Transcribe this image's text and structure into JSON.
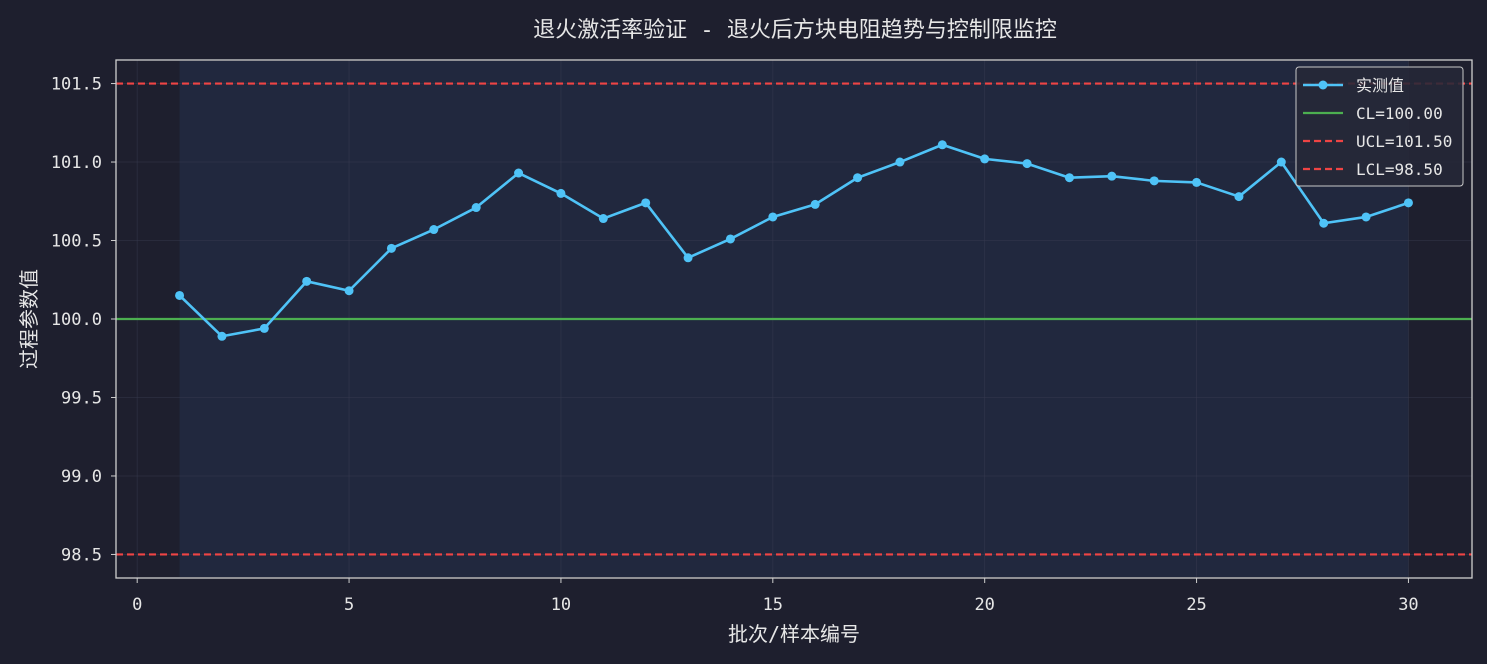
{
  "chart_data": {
    "type": "line",
    "title": "退火激活率验证 - 退火后方块电阻趋势与控制限监控",
    "xlabel": "批次/样本编号",
    "ylabel": "过程参数值",
    "xlim": [
      -0.5,
      31.5
    ],
    "ylim": [
      98.35,
      101.65
    ],
    "xticks": [
      0,
      5,
      10,
      15,
      20,
      25,
      30
    ],
    "yticks": [
      98.5,
      99.0,
      99.5,
      100.0,
      100.5,
      101.0,
      101.5
    ],
    "ytick_labels": [
      "98.5",
      "99.0",
      "99.5",
      "100.0",
      "100.5",
      "101.0",
      "101.5"
    ],
    "grid": true,
    "legend_position": "top-right",
    "x": [
      1,
      2,
      3,
      4,
      5,
      6,
      7,
      8,
      9,
      10,
      11,
      12,
      13,
      14,
      15,
      16,
      17,
      18,
      19,
      20,
      21,
      22,
      23,
      24,
      25,
      26,
      27,
      28,
      29,
      30
    ],
    "series": [
      {
        "name": "实测值",
        "color": "#4fc3f7",
        "values": [
          100.15,
          99.89,
          99.94,
          100.24,
          100.18,
          100.45,
          100.57,
          100.71,
          100.93,
          100.8,
          100.64,
          100.74,
          100.39,
          100.51,
          100.65,
          100.73,
          100.9,
          101.0,
          101.11,
          101.02,
          100.99,
          100.9,
          100.91,
          100.88,
          100.87,
          100.78,
          101.0,
          100.61,
          100.65,
          100.74
        ]
      }
    ],
    "control_lines": [
      {
        "name": "CL=100.00",
        "value": 100.0,
        "color": "#4caf50",
        "style": "solid"
      },
      {
        "name": "UCL=101.50",
        "value": 101.5,
        "color": "#ef4444",
        "style": "dashed"
      },
      {
        "name": "LCL=98.50",
        "value": 98.5,
        "color": "#ef4444",
        "style": "dashed"
      }
    ],
    "shaded_region_x": [
      1,
      30
    ]
  }
}
